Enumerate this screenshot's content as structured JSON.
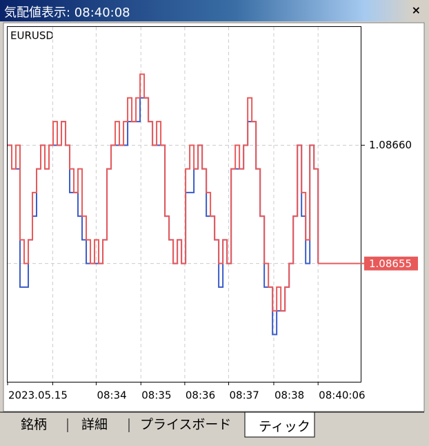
{
  "window": {
    "title": "気配値表示: 08:40:08",
    "close": "×"
  },
  "tabs": [
    "銘柄",
    "詳細",
    "プライスボード",
    "ティック"
  ],
  "active_tab": 3,
  "chart_data": {
    "type": "step-line",
    "symbol": "EURUSD",
    "series": [
      {
        "color": "#3a5cc8",
        "values": [
          1.0866,
          1.08659,
          1.08659,
          1.08654,
          1.08654,
          1.08656,
          1.08657,
          1.08659,
          1.0866,
          1.08659,
          1.0866,
          1.0866,
          1.0866,
          1.08661,
          1.0866,
          1.08658,
          1.08658,
          1.08657,
          1.08656,
          1.08655,
          1.08655,
          1.08655,
          1.08655,
          1.08656,
          1.08659,
          1.0866,
          1.0866,
          1.0866,
          1.0866,
          1.08661,
          1.08661,
          1.08661,
          1.08662,
          1.08662,
          1.08661,
          1.0866,
          1.0866,
          1.0866,
          1.08657,
          1.08656,
          1.08655,
          1.08656,
          1.08655,
          1.08658,
          1.08658,
          1.08659,
          1.0866,
          1.08659,
          1.08657,
          1.08657,
          1.08656,
          1.08654,
          1.08656,
          1.08655,
          1.08659,
          1.08659,
          1.08659,
          1.0866,
          1.08661,
          1.08661,
          1.08659,
          1.08657,
          1.08654,
          1.08654,
          1.08652,
          1.08653,
          1.08653,
          1.08654,
          1.08655,
          1.08657,
          1.0866,
          1.08657,
          1.08655,
          1.0866,
          1.08659,
          1.08655
        ]
      },
      {
        "color": "#e85a5a",
        "values": [
          1.0866,
          1.08659,
          1.0866,
          1.08656,
          1.08655,
          1.08656,
          1.08658,
          1.08659,
          1.0866,
          1.08659,
          1.0866,
          1.08661,
          1.0866,
          1.08661,
          1.0866,
          1.08659,
          1.08658,
          1.08659,
          1.08657,
          1.08656,
          1.08655,
          1.08656,
          1.08655,
          1.08656,
          1.08659,
          1.0866,
          1.08661,
          1.0866,
          1.08661,
          1.08662,
          1.08661,
          1.08662,
          1.08663,
          1.08662,
          1.08661,
          1.0866,
          1.08661,
          1.0866,
          1.08657,
          1.08656,
          1.08655,
          1.08656,
          1.08655,
          1.08659,
          1.0866,
          1.08659,
          1.0866,
          1.08659,
          1.08658,
          1.08657,
          1.08656,
          1.08655,
          1.08656,
          1.08655,
          1.08659,
          1.0866,
          1.08659,
          1.0866,
          1.08662,
          1.08661,
          1.08659,
          1.08657,
          1.08655,
          1.08654,
          1.08653,
          1.08654,
          1.08653,
          1.08654,
          1.08655,
          1.08657,
          1.0866,
          1.08658,
          1.08656,
          1.0866,
          1.08659,
          1.08655
        ]
      }
    ],
    "xlim": [
      0,
      85.3
    ],
    "xticks": [
      {
        "value": 0,
        "label": "2023.05.15"
      },
      {
        "value": 10.9,
        "label": null
      },
      {
        "value": 21.4,
        "label": "08:34"
      },
      {
        "value": 32.2,
        "label": "08:35"
      },
      {
        "value": 42.8,
        "label": "08:36"
      },
      {
        "value": 53.4,
        "label": "08:37"
      },
      {
        "value": 64.3,
        "label": "08:38"
      },
      {
        "value": 75,
        "label": "08:40:06"
      }
    ],
    "ylim": [
      1.0865,
      1.08665
    ],
    "yticks": [
      {
        "value": 1.0866,
        "label": "1.08660"
      },
      {
        "value": 1.08655,
        "label": null
      }
    ],
    "current_price": {
      "value": 1.08655,
      "label": "1.08655",
      "color": "#e85a5a"
    },
    "grid": true
  }
}
